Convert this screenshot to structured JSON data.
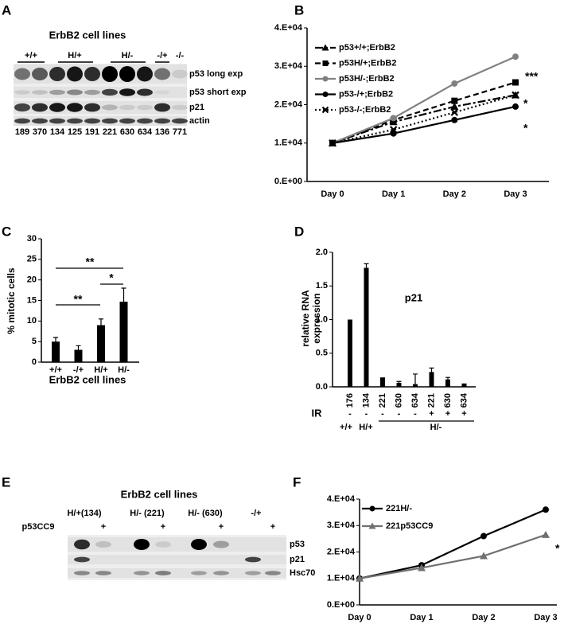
{
  "panels": [
    "A",
    "B",
    "C",
    "D",
    "E",
    "F"
  ],
  "blot_a": {
    "title": "ErbB2 cell lines",
    "groups": [
      "+/+",
      "H/+",
      "H/-",
      "-/+",
      "-/-"
    ],
    "rows": [
      "p53 long exp",
      "p53 short exp",
      "p21",
      "actin"
    ],
    "lanes": [
      "189",
      "370",
      "134",
      "125",
      "191",
      "221",
      "630",
      "634",
      "136",
      "771"
    ]
  },
  "blot_e": {
    "title": "ErbB2 cell lines",
    "groups": [
      "H/+(134)",
      "H/- (221)",
      "H/- (630)",
      "-/+"
    ],
    "treatment": "p53CC9",
    "treated": [
      "+",
      "+",
      "+",
      "+"
    ],
    "rows": [
      "p53",
      "p21",
      "Hsc70"
    ]
  },
  "chart_data": [
    {
      "type": "line",
      "categories": [
        "Day 0",
        "Day 1",
        "Day 2",
        "Day 3"
      ],
      "ylim": [
        0,
        40000
      ],
      "yticks": [
        {
          "value": 0,
          "label": "0.E+00"
        },
        {
          "value": 10000,
          "label": "1.E+04"
        },
        {
          "value": 20000,
          "label": "2.E+04"
        },
        {
          "value": 30000,
          "label": "3.E+04"
        },
        {
          "value": 40000,
          "label": "4.E+04"
        }
      ],
      "series": [
        {
          "name": "p53+/+;ErbB2",
          "color": "#000000",
          "dash": "dash-dot",
          "marker": "triangle",
          "values": [
            10000,
            15500,
            19500,
            22500
          ]
        },
        {
          "name": "p53H/+;ErbB2",
          "color": "#000000",
          "dash": "dash",
          "marker": "square",
          "values": [
            10000,
            16000,
            21000,
            25800
          ]
        },
        {
          "name": "p53H/-;ErbB2",
          "color": "#808080",
          "dash": "solid",
          "marker": "circle",
          "values": [
            10000,
            16500,
            25500,
            32500
          ]
        },
        {
          "name": "p53-/+;ErbB2",
          "color": "#000000",
          "dash": "solid",
          "marker": "circle",
          "values": [
            10000,
            12500,
            16000,
            19500
          ]
        },
        {
          "name": "p53-/-;ErbB2",
          "color": "#000000",
          "dash": "dot",
          "marker": "x",
          "values": [
            10000,
            13500,
            18000,
            22500
          ]
        }
      ],
      "annotations": [
        "***",
        "*",
        "*"
      ]
    },
    {
      "type": "bar",
      "categories": [
        "+/+",
        "-/+",
        "H/+",
        "H/-"
      ],
      "values": [
        5,
        3,
        9,
        14.7
      ],
      "errors": [
        1,
        1,
        1.5,
        3.3
      ],
      "color": "#000000",
      "ylim": [
        0,
        30
      ],
      "yticks": [
        0,
        5,
        10,
        15,
        20,
        25,
        30
      ],
      "ylabel": "% mitotic cells",
      "xlabel": "ErbB2 cell lines",
      "annotations": [
        "**",
        "*",
        "**"
      ]
    },
    {
      "type": "bar",
      "categories": [
        "176",
        "134",
        "221",
        "630",
        "634",
        "221",
        "630",
        "634"
      ],
      "values": [
        1.0,
        1.77,
        0.14,
        0.06,
        0.04,
        0.22,
        0.11,
        0.05
      ],
      "errors": [
        0,
        0.06,
        0,
        0.02,
        0.15,
        0.06,
        0.03,
        0
      ],
      "color": "#000000",
      "ylim": [
        0,
        2
      ],
      "yticks": [
        {
          "value": 0,
          "label": "0.0"
        },
        {
          "value": 0.5,
          "label": "0.5"
        },
        {
          "value": 1,
          "label": "1.0"
        },
        {
          "value": 1.5,
          "label": "1.5"
        },
        {
          "value": 2,
          "label": "2.0"
        }
      ],
      "ylabel": [
        "relative RNA",
        "expression"
      ],
      "annotations": [
        "p21"
      ],
      "ir": {
        "label": "IR",
        "values": [
          "-",
          "-",
          "-",
          "-",
          "-",
          "+",
          "+",
          "+"
        ]
      },
      "groups": [
        "+/+",
        "H/+",
        "H/-"
      ]
    },
    {
      "type": "line",
      "categories": [
        "Day 0",
        "Day 1",
        "Day 2",
        "Day 3"
      ],
      "ylim": [
        0,
        40000
      ],
      "yticks": [
        {
          "value": 0,
          "label": "0.E+00"
        },
        {
          "value": 10000,
          "label": "1.E+04"
        },
        {
          "value": 20000,
          "label": "2.E+04"
        },
        {
          "value": 30000,
          "label": "3.E+04"
        },
        {
          "value": 40000,
          "label": "4.E+04"
        }
      ],
      "series": [
        {
          "name": "221H/-",
          "color": "#000000",
          "dash": "solid",
          "marker": "circle",
          "values": [
            10000,
            15000,
            26000,
            36000
          ]
        },
        {
          "name": "221p53CC9",
          "color": "#707070",
          "dash": "solid",
          "marker": "triangle",
          "values": [
            10000,
            14000,
            18500,
            26500
          ]
        }
      ],
      "annotations": [
        "*"
      ]
    }
  ]
}
